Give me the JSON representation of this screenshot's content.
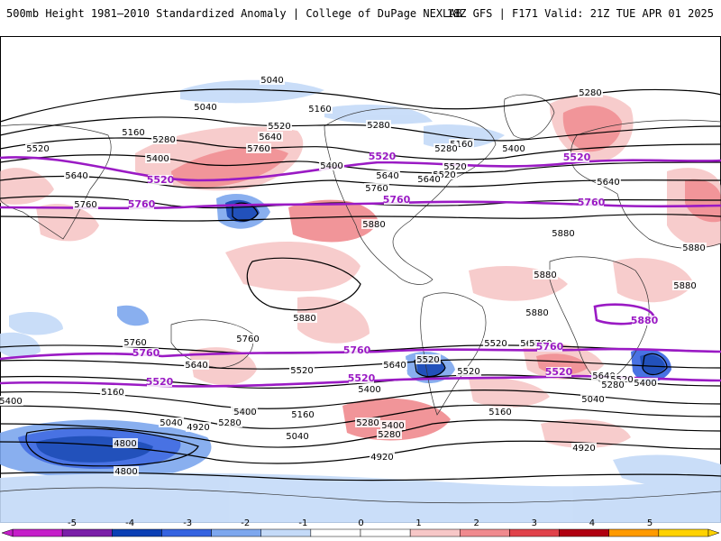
{
  "header": {
    "title": "500mb Height 1981–2010 Standardized Anomaly | College of DuPage NEXLAB",
    "run_info": "18Z GFS | F171 Valid: 21Z TUE APR 01 2025"
  },
  "contours_black": [
    {
      "text": "5040"
    },
    {
      "text": "5040"
    },
    {
      "text": "5160"
    },
    {
      "text": "5160"
    },
    {
      "text": "5280"
    },
    {
      "text": "5520"
    },
    {
      "text": "5640"
    },
    {
      "text": "5760"
    },
    {
      "text": "5400"
    },
    {
      "text": "5520"
    },
    {
      "text": "5640"
    },
    {
      "text": "5760"
    },
    {
      "text": "5880"
    },
    {
      "text": "5400"
    },
    {
      "text": "5640"
    },
    {
      "text": "5760"
    },
    {
      "text": "5280"
    },
    {
      "text": "5520"
    },
    {
      "text": "5160"
    },
    {
      "text": "5280"
    },
    {
      "text": "5400"
    },
    {
      "text": "5640"
    },
    {
      "text": "5880"
    },
    {
      "text": "5880"
    },
    {
      "text": "5880"
    },
    {
      "text": "5880"
    },
    {
      "text": "5880"
    },
    {
      "text": "5880"
    },
    {
      "text": "5760"
    },
    {
      "text": "5640"
    },
    {
      "text": "5520"
    },
    {
      "text": "5400"
    },
    {
      "text": "5280"
    },
    {
      "text": "5160"
    },
    {
      "text": "5040"
    },
    {
      "text": "4920"
    },
    {
      "text": "4800"
    },
    {
      "text": "4800"
    },
    {
      "text": "5760"
    },
    {
      "text": "5640"
    },
    {
      "text": "5520"
    },
    {
      "text": "5400"
    },
    {
      "text": "5280"
    },
    {
      "text": "5160"
    },
    {
      "text": "5040"
    },
    {
      "text": "4920"
    },
    {
      "text": "5640"
    },
    {
      "text": "5520"
    },
    {
      "text": "5400"
    },
    {
      "text": "5280"
    },
    {
      "text": "5160"
    },
    {
      "text": "5760"
    },
    {
      "text": "5640"
    },
    {
      "text": "5520"
    },
    {
      "text": "5400"
    },
    {
      "text": "5280"
    },
    {
      "text": "5040"
    },
    {
      "text": "4920"
    },
    {
      "text": "5280"
    },
    {
      "text": "5520"
    },
    {
      "text": "5400"
    },
    {
      "text": "5400"
    },
    {
      "text": "5520"
    },
    {
      "text": "5640"
    }
  ],
  "contours_purple": [
    {
      "text": "5520"
    },
    {
      "text": "5520"
    },
    {
      "text": "5520"
    },
    {
      "text": "5760"
    },
    {
      "text": "5760"
    },
    {
      "text": "5760"
    },
    {
      "text": "5760"
    },
    {
      "text": "5760"
    },
    {
      "text": "5760"
    },
    {
      "text": "5520"
    },
    {
      "text": "5520"
    },
    {
      "text": "5520"
    },
    {
      "text": "5880"
    }
  ],
  "colorbar": {
    "ticks": [
      "-5",
      "-4",
      "-3",
      "-2",
      "-1",
      "0",
      "1",
      "2",
      "3",
      "4",
      "5"
    ],
    "colors": [
      "#c51ec9",
      "#7a1fa8",
      "#0b3fb4",
      "#3563e0",
      "#7da7ee",
      "#c4daf8",
      "#ffffff",
      "#ffffff",
      "#f7c7c7",
      "#f08a8e",
      "#e0424a",
      "#b00010",
      "#ff9a00",
      "#ffd200"
    ]
  }
}
